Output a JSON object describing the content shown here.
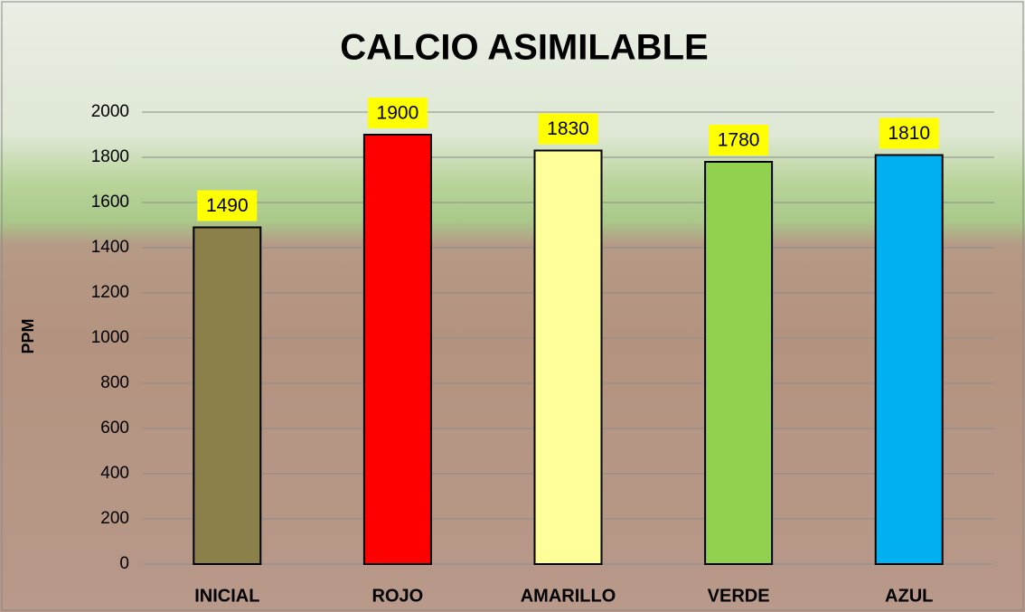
{
  "chart_data": {
    "type": "bar",
    "title": "CALCIO ASIMILABLE",
    "y_label": "PPM",
    "categories": [
      "INICIAL",
      "ROJO",
      "AMARILLO",
      "VERDE",
      "AZUL"
    ],
    "values": [
      1490,
      1900,
      1830,
      1780,
      1810
    ],
    "colors": [
      "#8b7f4a",
      "#ff0000",
      "#ffff99",
      "#92d050",
      "#00b0f0"
    ],
    "label_color": "#ffff00",
    "ylim": [
      0,
      2000
    ],
    "yticks": [
      0,
      200,
      400,
      600,
      800,
      1000,
      1200,
      1400,
      1600,
      1800,
      2000
    ],
    "grid": true
  }
}
